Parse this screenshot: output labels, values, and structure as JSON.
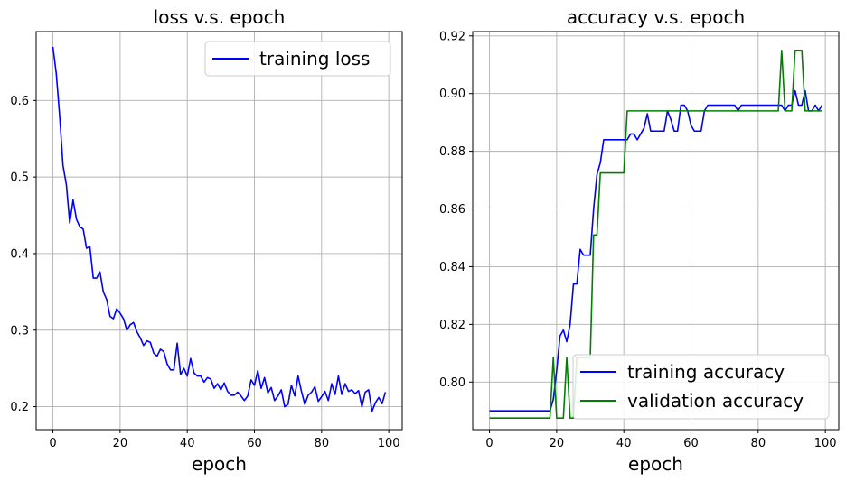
{
  "chart_data": [
    {
      "type": "line",
      "title": "loss v.s. epoch",
      "xlabel": "epoch",
      "ylabel": "",
      "xlim": [
        -5,
        104
      ],
      "ylim": [
        0.17,
        0.69
      ],
      "xticks": [
        0,
        20,
        40,
        60,
        80,
        100
      ],
      "yticks": [
        0.2,
        0.3,
        0.4,
        0.5,
        0.6
      ],
      "ytick_labels": [
        "0.2",
        "0.3",
        "0.4",
        "0.5",
        "0.6"
      ],
      "grid": true,
      "legend": "upper right",
      "series": [
        {
          "name": "training loss",
          "color": "#0000ff",
          "x": [
            0,
            1,
            2,
            3,
            4,
            5,
            6,
            7,
            8,
            9,
            10,
            11,
            12,
            13,
            14,
            15,
            16,
            17,
            18,
            19,
            20,
            21,
            22,
            23,
            24,
            25,
            26,
            27,
            28,
            29,
            30,
            31,
            32,
            33,
            34,
            35,
            36,
            37,
            38,
            39,
            40,
            41,
            42,
            43,
            44,
            45,
            46,
            47,
            48,
            49,
            50,
            51,
            52,
            53,
            54,
            55,
            56,
            57,
            58,
            59,
            60,
            61,
            62,
            63,
            64,
            65,
            66,
            67,
            68,
            69,
            70,
            71,
            72,
            73,
            74,
            75,
            76,
            77,
            78,
            79,
            80,
            81,
            82,
            83,
            84,
            85,
            86,
            87,
            88,
            89,
            90,
            91,
            92,
            93,
            94,
            95,
            96,
            97,
            98,
            99
          ],
          "values": [
            0.67,
            0.635,
            0.58,
            0.515,
            0.49,
            0.44,
            0.47,
            0.445,
            0.435,
            0.432,
            0.407,
            0.409,
            0.368,
            0.368,
            0.376,
            0.35,
            0.34,
            0.318,
            0.315,
            0.328,
            0.322,
            0.315,
            0.3,
            0.307,
            0.31,
            0.298,
            0.29,
            0.28,
            0.286,
            0.284,
            0.27,
            0.266,
            0.275,
            0.272,
            0.256,
            0.248,
            0.248,
            0.283,
            0.242,
            0.25,
            0.24,
            0.263,
            0.244,
            0.24,
            0.24,
            0.232,
            0.238,
            0.236,
            0.224,
            0.23,
            0.222,
            0.231,
            0.22,
            0.215,
            0.215,
            0.219,
            0.214,
            0.208,
            0.214,
            0.235,
            0.228,
            0.247,
            0.224,
            0.238,
            0.218,
            0.225,
            0.208,
            0.214,
            0.222,
            0.2,
            0.203,
            0.228,
            0.214,
            0.24,
            0.22,
            0.203,
            0.215,
            0.219,
            0.226,
            0.207,
            0.213,
            0.22,
            0.208,
            0.23,
            0.216,
            0.24,
            0.216,
            0.23,
            0.22,
            0.222,
            0.217,
            0.221,
            0.2,
            0.219,
            0.222,
            0.194,
            0.205,
            0.212,
            0.204,
            0.219
          ]
        }
      ]
    },
    {
      "type": "line",
      "title": "accuracy v.s. epoch",
      "xlabel": "epoch",
      "ylabel": "",
      "xlim": [
        -5,
        104
      ],
      "ylim": [
        0.7835,
        0.9215
      ],
      "xticks": [
        0,
        20,
        40,
        60,
        80,
        100
      ],
      "yticks": [
        0.8,
        0.82,
        0.84,
        0.86,
        0.88,
        0.9,
        0.92
      ],
      "ytick_labels": [
        "0.80",
        "0.82",
        "0.84",
        "0.86",
        "0.88",
        "0.90",
        "0.92"
      ],
      "grid": true,
      "legend": "lower right",
      "series": [
        {
          "name": "training accuracy",
          "color": "#0000ff",
          "x": [
            0,
            1,
            2,
            3,
            4,
            5,
            6,
            7,
            8,
            9,
            10,
            11,
            12,
            13,
            14,
            15,
            16,
            17,
            18,
            19,
            20,
            21,
            22,
            23,
            24,
            25,
            26,
            27,
            28,
            29,
            30,
            31,
            32,
            33,
            34,
            35,
            36,
            37,
            38,
            39,
            40,
            41,
            42,
            43,
            44,
            45,
            46,
            47,
            48,
            49,
            50,
            51,
            52,
            53,
            54,
            55,
            56,
            57,
            58,
            59,
            60,
            61,
            62,
            63,
            64,
            65,
            66,
            67,
            68,
            69,
            70,
            71,
            72,
            73,
            74,
            75,
            76,
            77,
            78,
            79,
            80,
            81,
            82,
            83,
            84,
            85,
            86,
            87,
            88,
            89,
            90,
            91,
            92,
            93,
            94,
            95,
            96,
            97,
            98,
            99
          ],
          "values": [
            0.79,
            0.79,
            0.79,
            0.79,
            0.79,
            0.79,
            0.79,
            0.79,
            0.79,
            0.79,
            0.79,
            0.79,
            0.79,
            0.79,
            0.79,
            0.79,
            0.79,
            0.79,
            0.79,
            0.794,
            0.804,
            0.816,
            0.818,
            0.814,
            0.82,
            0.834,
            0.834,
            0.846,
            0.844,
            0.844,
            0.844,
            0.86,
            0.872,
            0.876,
            0.884,
            0.884,
            0.884,
            0.884,
            0.884,
            0.884,
            0.884,
            0.884,
            0.886,
            0.886,
            0.884,
            0.886,
            0.888,
            0.893,
            0.887,
            0.887,
            0.887,
            0.887,
            0.887,
            0.894,
            0.891,
            0.887,
            0.887,
            0.896,
            0.896,
            0.894,
            0.889,
            0.887,
            0.887,
            0.887,
            0.894,
            0.896,
            0.896,
            0.896,
            0.896,
            0.896,
            0.896,
            0.896,
            0.896,
            0.896,
            0.894,
            0.896,
            0.896,
            0.896,
            0.896,
            0.896,
            0.896,
            0.896,
            0.896,
            0.896,
            0.896,
            0.896,
            0.896,
            0.896,
            0.894,
            0.896,
            0.896,
            0.901,
            0.896,
            0.896,
            0.901,
            0.894,
            0.894,
            0.896,
            0.894,
            0.896
          ]
        },
        {
          "name": "validation accuracy",
          "color": "#008000",
          "x": [
            0,
            1,
            2,
            3,
            4,
            5,
            6,
            7,
            8,
            9,
            10,
            11,
            12,
            13,
            14,
            15,
            16,
            17,
            18,
            19,
            20,
            21,
            22,
            23,
            24,
            25,
            26,
            27,
            28,
            29,
            30,
            31,
            32,
            33,
            34,
            35,
            36,
            37,
            38,
            39,
            40,
            41,
            42,
            43,
            44,
            45,
            46,
            47,
            48,
            49,
            50,
            51,
            52,
            53,
            54,
            55,
            56,
            57,
            58,
            59,
            60,
            61,
            62,
            63,
            64,
            65,
            66,
            67,
            68,
            69,
            70,
            71,
            72,
            73,
            74,
            75,
            76,
            77,
            78,
            79,
            80,
            81,
            82,
            83,
            84,
            85,
            86,
            87,
            88,
            89,
            90,
            91,
            92,
            93,
            94,
            95,
            96,
            97,
            98,
            99
          ],
          "values": [
            0.7875,
            0.7875,
            0.7875,
            0.7875,
            0.7875,
            0.7875,
            0.7875,
            0.7875,
            0.7875,
            0.7875,
            0.7875,
            0.7875,
            0.7875,
            0.7875,
            0.7875,
            0.7875,
            0.7875,
            0.7875,
            0.7875,
            0.8085,
            0.7875,
            0.7875,
            0.7875,
            0.8085,
            0.7875,
            0.7875,
            0.8085,
            0.8085,
            0.8085,
            0.8085,
            0.8085,
            0.851,
            0.851,
            0.8725,
            0.8725,
            0.8725,
            0.8725,
            0.8725,
            0.8725,
            0.8725,
            0.8725,
            0.894,
            0.894,
            0.894,
            0.894,
            0.894,
            0.894,
            0.894,
            0.894,
            0.894,
            0.894,
            0.894,
            0.894,
            0.894,
            0.894,
            0.894,
            0.894,
            0.894,
            0.894,
            0.894,
            0.894,
            0.894,
            0.894,
            0.894,
            0.894,
            0.894,
            0.894,
            0.894,
            0.894,
            0.894,
            0.894,
            0.894,
            0.894,
            0.894,
            0.894,
            0.894,
            0.894,
            0.894,
            0.894,
            0.894,
            0.894,
            0.894,
            0.894,
            0.894,
            0.894,
            0.894,
            0.894,
            0.915,
            0.894,
            0.894,
            0.894,
            0.915,
            0.915,
            0.915,
            0.894,
            0.894,
            0.894,
            0.894,
            0.894,
            0.894
          ]
        }
      ]
    }
  ]
}
